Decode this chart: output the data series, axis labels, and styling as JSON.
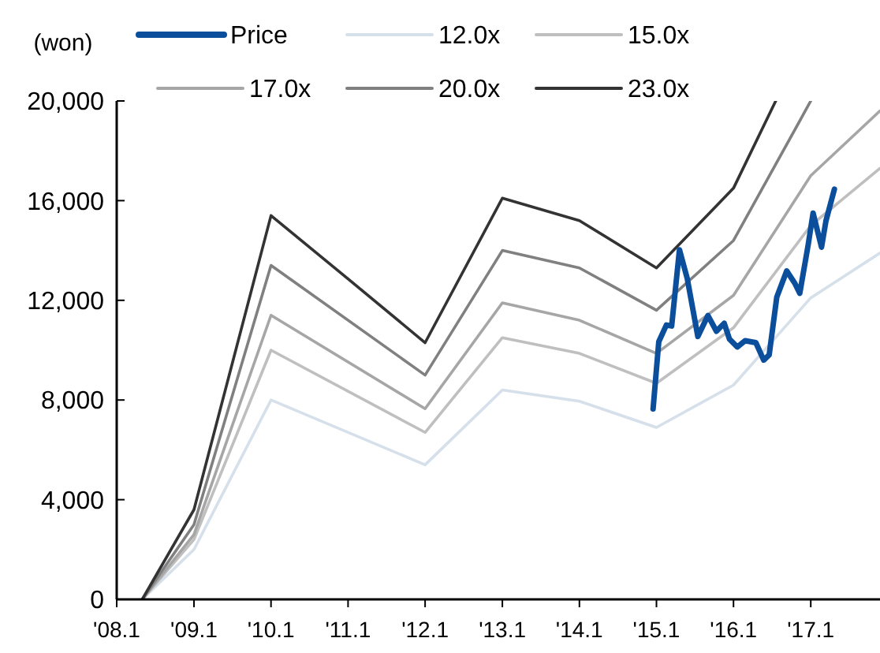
{
  "chart_data": {
    "type": "line",
    "ylabel": "(won)",
    "legend": "top",
    "grid": false,
    "marker": "none",
    "line_style": "solid",
    "xlim": [
      "2008-01",
      "2017-11-25"
    ],
    "ylim": [
      0,
      20000
    ],
    "xticks": [
      {
        "value": "2008-01",
        "label": "'08.1"
      },
      {
        "value": "2009-01",
        "label": "'09.1"
      },
      {
        "value": "2010-01",
        "label": "'10.1"
      },
      {
        "value": "2011-01",
        "label": "'11.1"
      },
      {
        "value": "2012-01",
        "label": "'12.1"
      },
      {
        "value": "2013-01",
        "label": "'13.1"
      },
      {
        "value": "2014-01",
        "label": "'14.1"
      },
      {
        "value": "2015-01",
        "label": "'15.1"
      },
      {
        "value": "2016-01",
        "label": "'16.1"
      },
      {
        "value": "2017-01",
        "label": "'17.1"
      }
    ],
    "yticks": [
      {
        "value": 0,
        "label": "0"
      },
      {
        "value": 4000,
        "label": "4,000"
      },
      {
        "value": 8000,
        "label": "8,000"
      },
      {
        "value": 12000,
        "label": "12,000"
      },
      {
        "value": 16000,
        "label": "16,000"
      },
      {
        "value": 20000,
        "label": "20,000"
      }
    ],
    "series": [
      {
        "name": "Price",
        "color": "#0b4f9c",
        "x": [
          "2014-12-16",
          "2015-01-12",
          "2015-02-17",
          "2015-03-14",
          "2015-04-20",
          "2015-05-27",
          "2015-07-16",
          "2015-09-02",
          "2015-10-12",
          "2015-11-18",
          "2015-12-13",
          "2016-01-19",
          "2016-02-25",
          "2016-04-16",
          "2016-05-23",
          "2016-06-18",
          "2016-07-24",
          "2016-09-09",
          "2016-10-19",
          "2016-11-10",
          "2016-12-20",
          "2017-01-12",
          "2017-02-21",
          "2017-03-14",
          "2017-04-23"
        ],
        "values": [
          7640,
          10340,
          11010,
          10970,
          14030,
          12870,
          10550,
          11390,
          10760,
          11080,
          10440,
          10130,
          10380,
          10300,
          9600,
          9810,
          12130,
          13180,
          12660,
          12280,
          14240,
          15500,
          14130,
          15190,
          16460
        ]
      },
      {
        "name": "12.0x",
        "color": "#d6e0ea",
        "x": [
          "2008-05",
          "2009-01",
          "2010-01",
          "2012-01",
          "2013-01",
          "2014-01",
          "2015-01",
          "2016-01",
          "2017-01",
          "2017-11-25"
        ],
        "values": [
          0,
          2000,
          8000,
          5400,
          8400,
          7950,
          6900,
          8600,
          12100,
          13900
        ]
      },
      {
        "name": "15.0x",
        "color": "#bfbfbf",
        "x": [
          "2008-05",
          "2009-01",
          "2010-01",
          "2012-01",
          "2013-01",
          "2014-01",
          "2015-01",
          "2016-01",
          "2017-01",
          "2017-11-25"
        ],
        "values": [
          0,
          2400,
          10000,
          6700,
          10500,
          9870,
          8670,
          10900,
          15000,
          17300
        ]
      },
      {
        "name": "17.0x",
        "color": "#a6a6a6",
        "x": [
          "2008-05",
          "2009-01",
          "2010-01",
          "2012-01",
          "2013-01",
          "2014-01",
          "2015-01",
          "2016-01",
          "2017-01",
          "2017-11-25"
        ],
        "values": [
          0,
          2600,
          11400,
          7650,
          11900,
          11200,
          9870,
          12200,
          17000,
          19600
        ]
      },
      {
        "name": "20.0x",
        "color": "#808080",
        "x": [
          "2008-05",
          "2009-01",
          "2010-01",
          "2012-01",
          "2013-01",
          "2014-01",
          "2015-01",
          "2016-01",
          "2017-01"
        ],
        "values": [
          0,
          3000,
          13400,
          9000,
          14000,
          13300,
          11600,
          14400,
          20000
        ]
      },
      {
        "name": "23.0x",
        "color": "#333333",
        "x": [
          "2008-05",
          "2009-01",
          "2010-01",
          "2011-01",
          "2012-01",
          "2013-01",
          "2014-01",
          "2015-01",
          "2016-01",
          "2016-07-19"
        ],
        "values": [
          0,
          3600,
          15400,
          12860,
          10300,
          16100,
          15200,
          13300,
          16500,
          20000
        ]
      }
    ]
  }
}
